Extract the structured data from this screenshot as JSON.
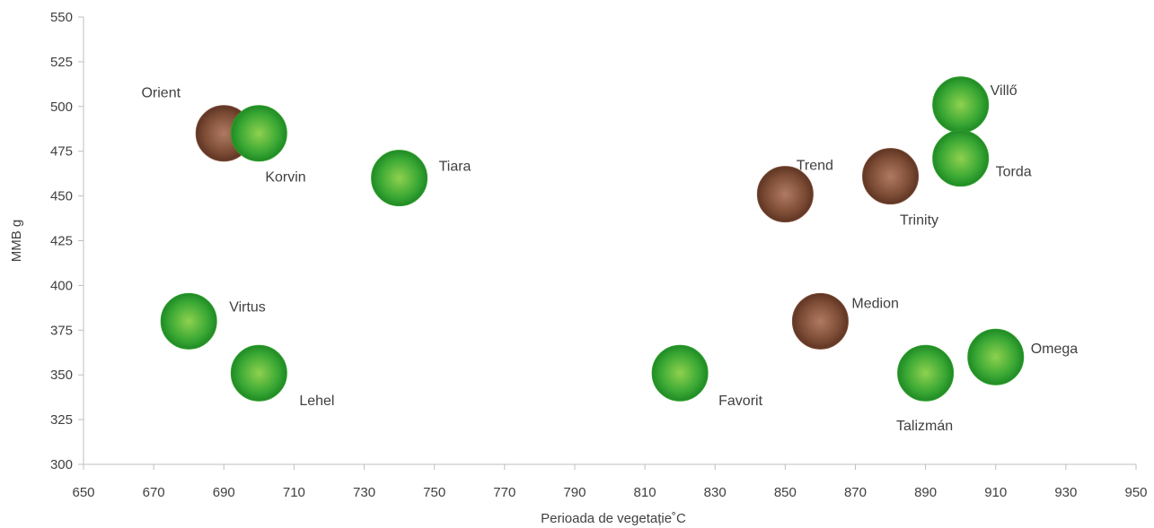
{
  "chart_data": {
    "type": "scatter",
    "title": "",
    "xlabel": "Perioada de vegetație˚C",
    "ylabel": "MMB g",
    "xlim": [
      650,
      950
    ],
    "ylim": [
      300,
      550
    ],
    "x_ticks": [
      650,
      670,
      690,
      710,
      730,
      750,
      770,
      790,
      810,
      830,
      850,
      870,
      890,
      910,
      930,
      950
    ],
    "y_ticks": [
      300,
      325,
      350,
      375,
      400,
      425,
      450,
      475,
      500,
      525,
      550
    ],
    "grid": false,
    "colors": {
      "green": "#2e9e2a",
      "brown": "#7a4a33"
    },
    "points": [
      {
        "name": "Orient",
        "x": 690,
        "y": 485,
        "color": "brown"
      },
      {
        "name": "Korvin",
        "x": 700,
        "y": 485,
        "color": "green"
      },
      {
        "name": "Tiara",
        "x": 740,
        "y": 460,
        "color": "green"
      },
      {
        "name": "Virtus",
        "x": 680,
        "y": 380,
        "color": "green"
      },
      {
        "name": "Lehel",
        "x": 700,
        "y": 351,
        "color": "green"
      },
      {
        "name": "Favorit",
        "x": 820,
        "y": 351,
        "color": "green"
      },
      {
        "name": "Trend",
        "x": 850,
        "y": 451,
        "color": "brown"
      },
      {
        "name": "Medion",
        "x": 860,
        "y": 380,
        "color": "brown"
      },
      {
        "name": "Trinity",
        "x": 880,
        "y": 461,
        "color": "brown"
      },
      {
        "name": "Talizmán",
        "x": 890,
        "y": 351,
        "color": "green"
      },
      {
        "name": "Villő",
        "x": 900,
        "y": 501,
        "color": "green"
      },
      {
        "name": "Torda",
        "x": 900,
        "y": 471,
        "color": "green"
      },
      {
        "name": "Omega",
        "x": 910,
        "y": 360,
        "color": "green"
      }
    ]
  }
}
